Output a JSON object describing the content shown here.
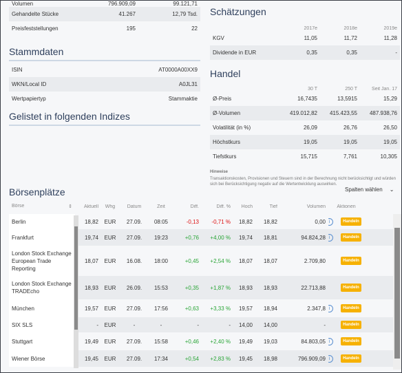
{
  "top_left": {
    "rows": [
      {
        "label": "Volumen",
        "v1": "796.909,09",
        "v2": "99.121,71"
      },
      {
        "label": "Gehandelte Stücke",
        "v1": "41.267",
        "v2": "12,79 Tsd."
      },
      {
        "label": "Preisfeststellungen",
        "v1": "195",
        "v2": "22"
      }
    ]
  },
  "stammdaten": {
    "title": "Stammdaten",
    "rows": [
      {
        "label": "ISIN",
        "value": "AT0000A00XX9"
      },
      {
        "label": "WKN/Local ID",
        "value": "A0JL31"
      },
      {
        "label": "Wertpapiertyp",
        "value": "Stammaktie"
      }
    ]
  },
  "indizes": {
    "title": "Gelistet in folgenden Indizes"
  },
  "schaetzungen": {
    "title": "Schätzungen",
    "cols": [
      "2017e",
      "2018e",
      "2019e"
    ],
    "rows": [
      {
        "label": "KGV",
        "v": [
          "11,05",
          "11,72",
          "11,28"
        ]
      },
      {
        "label": "Dividende in EUR",
        "v": [
          "0,35",
          "0,35",
          "-"
        ]
      }
    ]
  },
  "handel": {
    "title": "Handel",
    "cols": [
      "30 T",
      "250 T",
      "Seit Jan. 17"
    ],
    "rows": [
      {
        "label": "Ø-Preis",
        "v": [
          "16,7435",
          "13,5915",
          "15,29"
        ]
      },
      {
        "label": "Ø-Volumen",
        "v": [
          "419.012,82",
          "415.423,55",
          "487.938,76"
        ]
      },
      {
        "label": "Volatilität (in %)",
        "v": [
          "26,09",
          "26,76",
          "26,50"
        ]
      },
      {
        "label": "Höchstkurs",
        "v": [
          "19,05",
          "19,05",
          "19,05"
        ]
      },
      {
        "label": "Tiefstkurs",
        "v": [
          "15,715",
          "7,761",
          "10,305"
        ]
      }
    ],
    "hint_title": "Hinweise",
    "hint_text": "Transaktionskosten, Provisionen und Steuern sind in der Berechnung nicht berücksichtigt und würden sich bei Berücksichtigung negativ auf die Wertentwicklung auswirken."
  },
  "boersen": {
    "title": "Börsenplätze",
    "columns_select": "Spalten wählen",
    "headers": [
      "Börse",
      "Aktuell",
      "Whg",
      "Datum",
      "Zeit",
      "Diff.",
      "Diff. %",
      "Hoch",
      "Tief",
      "Volumen",
      "Aktionen"
    ],
    "button_label": "Handeln",
    "rows": [
      {
        "name": "Berlin",
        "akt": "18,82",
        "whg": "EUR",
        "datum": "27.09.",
        "zeit": "08:05",
        "diff": "-0,13",
        "diffp": "-0,71 %",
        "hoch": "18,82",
        "tief": "18,82",
        "vol": "0,00",
        "dir": "neg",
        "info": true
      },
      {
        "name": "Frankfurt",
        "akt": "19,74",
        "whg": "EUR",
        "datum": "27.09.",
        "zeit": "19:23",
        "diff": "+0,76",
        "diffp": "+4,00 %",
        "hoch": "19,74",
        "tief": "18,81",
        "vol": "94.824,28",
        "dir": "pos",
        "info": true
      },
      {
        "name": "London Stock Exchange European Trade Reporting",
        "akt": "18,07",
        "whg": "EUR",
        "datum": "16.08.",
        "zeit": "18:00",
        "diff": "+0,45",
        "diffp": "+2,54 %",
        "hoch": "18,07",
        "tief": "18,07",
        "vol": "2.709,80",
        "dir": "pos",
        "info": false
      },
      {
        "name": "London Stock Exchange TRADEcho",
        "akt": "18,93",
        "whg": "EUR",
        "datum": "26.09.",
        "zeit": "15:53",
        "diff": "+0,35",
        "diffp": "+1,87 %",
        "hoch": "18,93",
        "tief": "18,93",
        "vol": "22.713,88",
        "dir": "pos",
        "info": false
      },
      {
        "name": "München",
        "akt": "19,57",
        "whg": "EUR",
        "datum": "27.09.",
        "zeit": "17:56",
        "diff": "+0,63",
        "diffp": "+3,33 %",
        "hoch": "19,57",
        "tief": "18,94",
        "vol": "2.347,8",
        "dir": "pos",
        "info": true
      },
      {
        "name": "SIX SLS",
        "akt": "-",
        "whg": "EUR",
        "datum": "-",
        "zeit": "-",
        "diff": "-",
        "diffp": "-",
        "hoch": "14,00",
        "tief": "14,00",
        "vol": "-",
        "dir": "pos",
        "info": false
      },
      {
        "name": "Stuttgart",
        "akt": "19,49",
        "whg": "EUR",
        "datum": "27.09.",
        "zeit": "15:58",
        "diff": "+0,46",
        "diffp": "+2,40 %",
        "hoch": "19,49",
        "tief": "19,03",
        "vol": "84.803,05",
        "dir": "pos",
        "info": true
      },
      {
        "name": "Wiener Börse",
        "akt": "19,45",
        "whg": "EUR",
        "datum": "27.09.",
        "zeit": "17:34",
        "diff": "+0,54",
        "diffp": "+2,83 %",
        "hoch": "19,45",
        "tief": "18,98",
        "vol": "796.909,09",
        "dir": "pos",
        "info": true
      }
    ]
  }
}
